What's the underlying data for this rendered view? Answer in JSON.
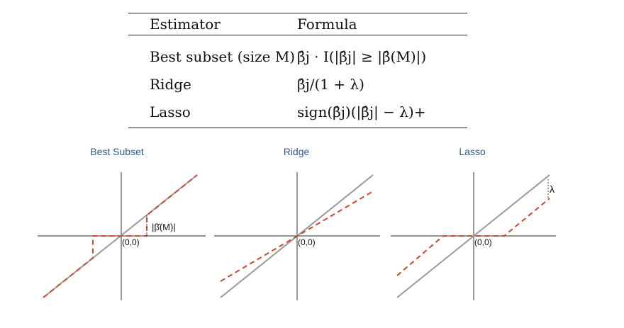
{
  "table": {
    "header": {
      "estimator": "Estimator",
      "formula": "Formula"
    },
    "rows": [
      {
        "estimator": "Best subset (size M)",
        "formula": "β̂j · I(|β̂j| ≥ |β̂(M)|)"
      },
      {
        "estimator": "Ridge",
        "formula": "β̂j/(1 + λ)"
      },
      {
        "estimator": "Lasso",
        "formula": "sign(β̂j)(|β̂j| − λ)+"
      }
    ]
  },
  "panels": [
    {
      "title": "Best Subset",
      "origin_label": "(0,0)",
      "annotation": "|β̂(M)|"
    },
    {
      "title": "Ridge",
      "origin_label": "(0,0)"
    },
    {
      "title": "Lasso",
      "origin_label": "(0,0)",
      "annotation": "λ"
    }
  ],
  "colors": {
    "axis": "#555555",
    "identity_line": "#9a9a9a",
    "estimator_line": "#d6452a",
    "title": "#2b5a9a"
  }
}
